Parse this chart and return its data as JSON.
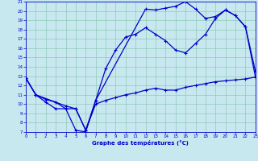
{
  "xlabel": "Graphe des températures (°C)",
  "xlim": [
    0,
    23
  ],
  "ylim": [
    7,
    21
  ],
  "yticks": [
    7,
    8,
    9,
    10,
    11,
    12,
    13,
    14,
    15,
    16,
    17,
    18,
    19,
    20,
    21
  ],
  "xticks": [
    0,
    1,
    2,
    3,
    4,
    5,
    6,
    7,
    8,
    9,
    10,
    11,
    12,
    13,
    14,
    15,
    16,
    17,
    18,
    19,
    20,
    21,
    22,
    23
  ],
  "bg_color": "#c8e8f0",
  "grid_color": "#90c8b8",
  "line_color": "#0000cc",
  "line1_x": [
    0,
    1,
    2,
    3,
    4,
    5,
    6,
    7,
    12,
    13,
    14,
    15,
    16,
    17,
    18,
    19,
    20,
    21,
    22,
    23
  ],
  "line1_y": [
    12.8,
    11.0,
    10.2,
    9.5,
    9.5,
    7.2,
    7.0,
    10.4,
    20.2,
    20.1,
    20.3,
    20.5,
    21.0,
    20.2,
    19.2,
    19.4,
    20.1,
    19.5,
    18.3,
    12.9
  ],
  "line2_x": [
    0,
    1,
    2,
    3,
    4,
    5,
    6,
    7,
    8,
    9,
    10,
    11,
    12,
    13,
    14,
    15,
    16,
    17,
    18,
    19,
    20,
    21,
    22,
    23
  ],
  "line2_y": [
    12.8,
    11.0,
    10.5,
    10.2,
    9.8,
    9.5,
    7.2,
    10.0,
    10.4,
    10.7,
    11.0,
    11.2,
    11.5,
    11.7,
    11.5,
    11.5,
    11.8,
    12.0,
    12.2,
    12.4,
    12.5,
    12.6,
    12.7,
    12.9
  ],
  "line3_x": [
    0,
    1,
    3,
    4,
    5,
    6,
    7,
    8,
    9,
    10,
    11,
    12,
    13,
    14,
    15,
    16,
    17,
    18,
    19,
    20,
    21,
    22,
    23
  ],
  "line3_y": [
    12.8,
    11.0,
    10.2,
    9.5,
    9.5,
    7.2,
    10.4,
    13.8,
    15.8,
    17.2,
    17.5,
    18.2,
    17.5,
    16.8,
    15.8,
    15.5,
    16.5,
    17.5,
    19.2,
    20.1,
    19.5,
    18.3,
    13.5
  ]
}
